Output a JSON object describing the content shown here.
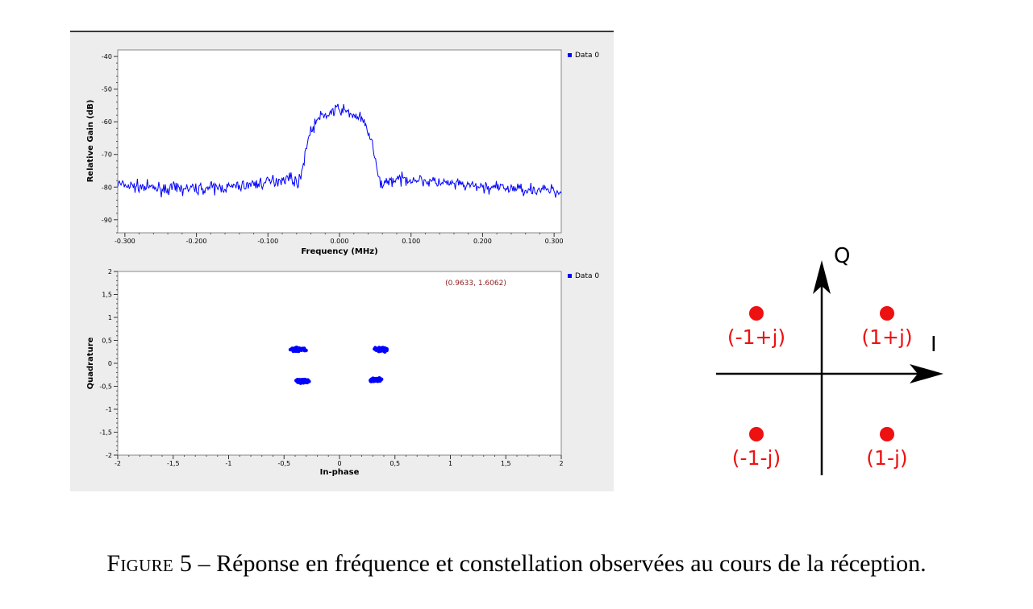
{
  "chart_data": [
    {
      "type": "line",
      "title": "",
      "xlabel": "Frequency (MHz)",
      "ylabel": "Relative Gain (dB)",
      "xlim": [
        -0.31,
        0.31
      ],
      "ylim": [
        -94,
        -38
      ],
      "x_ticks": [
        -0.3,
        -0.2,
        -0.1,
        0.0,
        0.1,
        0.2,
        0.3
      ],
      "x_tick_labels": [
        "-0.300",
        "-0.200",
        "-0.100",
        "0.000",
        "0.100",
        "0.200",
        "0.300"
      ],
      "y_ticks": [
        -90,
        -80,
        -70,
        -60,
        -50,
        -40
      ],
      "y_tick_labels": [
        "-90",
        "-80",
        "-70",
        "-60",
        "-50",
        "-40"
      ],
      "legend": [
        "Data 0"
      ],
      "legend_position": "top-right",
      "series": [
        {
          "name": "Data 0",
          "color": "#0000ff",
          "envelope_x": [
            -0.31,
            -0.3,
            -0.25,
            -0.2,
            -0.15,
            -0.1,
            -0.07,
            -0.06,
            -0.055,
            -0.05,
            -0.045,
            -0.04,
            -0.03,
            -0.02,
            -0.01,
            0.0,
            0.01,
            0.02,
            0.03,
            0.04,
            0.045,
            0.05,
            0.055,
            0.06,
            0.07,
            0.1,
            0.15,
            0.2,
            0.25,
            0.3,
            0.31
          ],
          "envelope_y": [
            -79,
            -79.5,
            -80.5,
            -80.5,
            -80,
            -78.5,
            -77,
            -78.5,
            -78,
            -72,
            -66,
            -63,
            -59,
            -58,
            -57,
            -56,
            -57,
            -58,
            -59,
            -63,
            -66,
            -72,
            -78,
            -79,
            -78,
            -77.5,
            -79,
            -80,
            -80.5,
            -81,
            -82
          ]
        }
      ]
    },
    {
      "type": "scatter",
      "title": "",
      "xlabel": "In-phase",
      "ylabel": "Quadrature",
      "xlim": [
        -2,
        2
      ],
      "ylim": [
        -2,
        2
      ],
      "x_ticks": [
        -2,
        -1.5,
        -1,
        -0.5,
        0,
        0.5,
        1,
        1.5,
        2
      ],
      "x_tick_labels": [
        "-2",
        "-1,5",
        "-1",
        "-0,5",
        "0",
        "0,5",
        "1",
        "1,5",
        "2"
      ],
      "y_ticks": [
        -2,
        -1.5,
        -1,
        -0.5,
        0,
        0.5,
        1,
        1.5,
        2
      ],
      "y_tick_labels": [
        "-2",
        "-1,5",
        "-1",
        "-0,5",
        "0",
        "0,5",
        "1",
        "1,5",
        "2"
      ],
      "legend": [
        "Data 0"
      ],
      "legend_position": "top-right",
      "annotation": "(0.9633, 1.6062)",
      "series": [
        {
          "name": "Data 0",
          "color": "#0000ff",
          "clusters": [
            {
              "x": -0.38,
              "y": 0.3
            },
            {
              "x": 0.38,
              "y": 0.3
            },
            {
              "x": -0.33,
              "y": -0.39
            },
            {
              "x": 0.33,
              "y": -0.36
            }
          ]
        }
      ]
    },
    {
      "type": "scatter",
      "title": "",
      "axis_labels": {
        "x": "I",
        "y": "Q"
      },
      "points": [
        {
          "x": 1,
          "y": 1,
          "label": "(1+j)"
        },
        {
          "x": -1,
          "y": 1,
          "label": "(-1+j)"
        },
        {
          "x": -1,
          "y": -1,
          "label": "(-1-j)"
        },
        {
          "x": 1,
          "y": -1,
          "label": "(1-j)"
        }
      ],
      "color": "#ee1111"
    }
  ],
  "caption": {
    "prefix": "Figure 5",
    "text": " – Réponse en fréquence et constellation observées au cours de la réception."
  }
}
